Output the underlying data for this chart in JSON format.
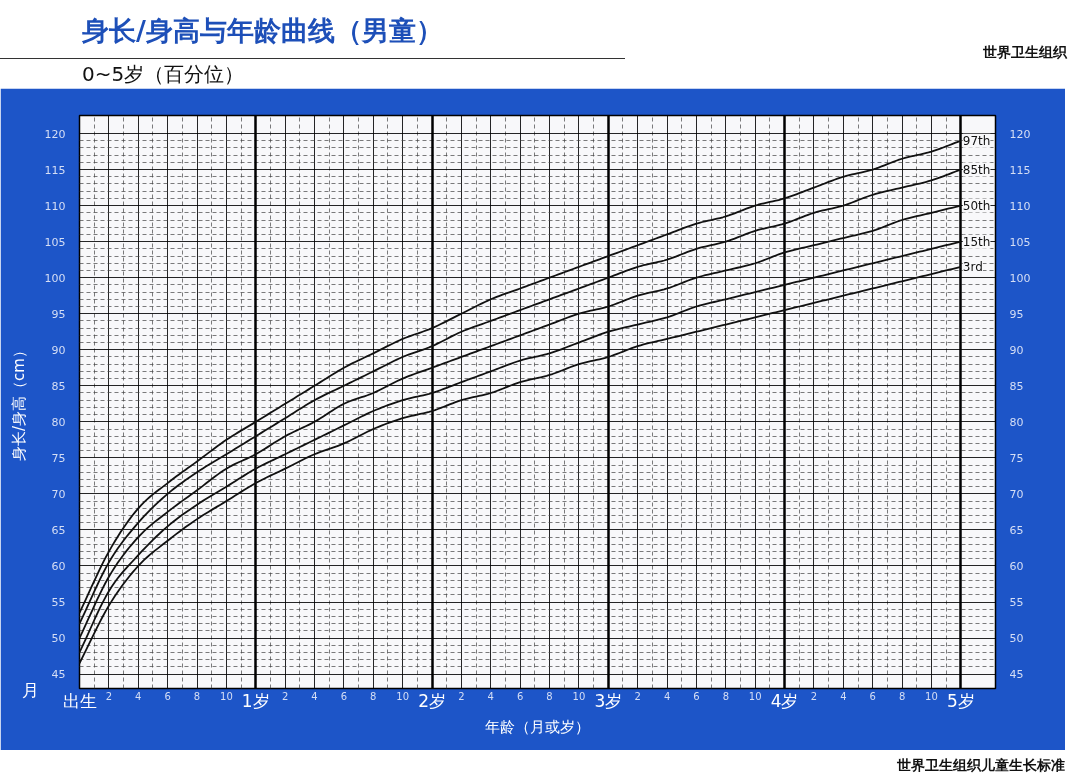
{
  "chart_data": {
    "type": "line",
    "title": "身长/身高与年龄曲线（男童）",
    "subtitle": "0~5岁（百分位）",
    "xlabel": "年龄（月或岁）",
    "ylabel": "身长/身高（cm）",
    "annotations": [
      "月",
      "世界卫生组织儿童生长标准",
      "世界卫生组织"
    ],
    "categories": [
      "出生",
      "2",
      "4",
      "6",
      "8",
      "10",
      "1岁",
      "2",
      "4",
      "6",
      "8",
      "10",
      "2岁",
      "2",
      "4",
      "6",
      "8",
      "10",
      "3岁",
      "2",
      "4",
      "6",
      "8",
      "10",
      "4岁",
      "2",
      "4",
      "6",
      "8",
      "10",
      "5岁"
    ],
    "ylim": [
      43,
      122.5
    ],
    "yticks": [
      45,
      50,
      55,
      60,
      65,
      70,
      75,
      80,
      85,
      90,
      95,
      100,
      105,
      110,
      115,
      120
    ],
    "y2lim": [
      43,
      122.5
    ],
    "y2ticks": [
      45,
      50,
      55,
      60,
      65,
      70,
      75,
      80,
      85,
      90,
      95,
      100,
      105,
      110,
      115,
      120
    ],
    "grid": true,
    "series": [
      {
        "name": "97th",
        "color": "#111111",
        "values": [
          53.5,
          62,
          68,
          71.5,
          74.5,
          77.5,
          80,
          82.5,
          85,
          87.5,
          89.5,
          91.5,
          93,
          95,
          97,
          98.5,
          100,
          101.5,
          103,
          104.5,
          106,
          107.5,
          108.5,
          110,
          111,
          112.5,
          114,
          115,
          116.5,
          117.5,
          119
        ]
      },
      {
        "name": "85th",
        "color": "#111111",
        "values": [
          52,
          60.5,
          66,
          70,
          73,
          75.5,
          78,
          80.5,
          83,
          85,
          87,
          89,
          90.5,
          92.5,
          94,
          95.5,
          97,
          98.5,
          100,
          101.5,
          102.5,
          104,
          105,
          106.5,
          107.5,
          109,
          110,
          111.5,
          112.5,
          113.5,
          115
        ]
      },
      {
        "name": "50th",
        "color": "#111111",
        "values": [
          50,
          58.5,
          64,
          67.5,
          70.5,
          73.5,
          75.5,
          78,
          80,
          82.5,
          84,
          86,
          87.5,
          89,
          90.5,
          92,
          93.5,
          95,
          96,
          97.5,
          98.5,
          100,
          101,
          102,
          103.5,
          104.5,
          105.5,
          106.5,
          108,
          109,
          110
        ]
      },
      {
        "name": "15th",
        "color": "#111111",
        "values": [
          48,
          56.5,
          61.5,
          65.5,
          68.5,
          71,
          73.5,
          75.5,
          77.5,
          79.5,
          81.5,
          83,
          84,
          85.5,
          87,
          88.5,
          89.5,
          91,
          92.5,
          93.5,
          94.5,
          96,
          97,
          98,
          99,
          100,
          101,
          102,
          103,
          104,
          105
        ]
      },
      {
        "name": "3rd",
        "color": "#111111",
        "values": [
          46.5,
          54.5,
          60,
          63.5,
          66.5,
          69,
          71.5,
          73.5,
          75.5,
          77,
          79,
          80.5,
          81.5,
          83,
          84,
          85.5,
          86.5,
          88,
          89,
          90.5,
          91.5,
          92.5,
          93.5,
          94.5,
          95.5,
          96.5,
          97.5,
          98.5,
          99.5,
          100.5,
          101.5
        ]
      }
    ]
  }
}
